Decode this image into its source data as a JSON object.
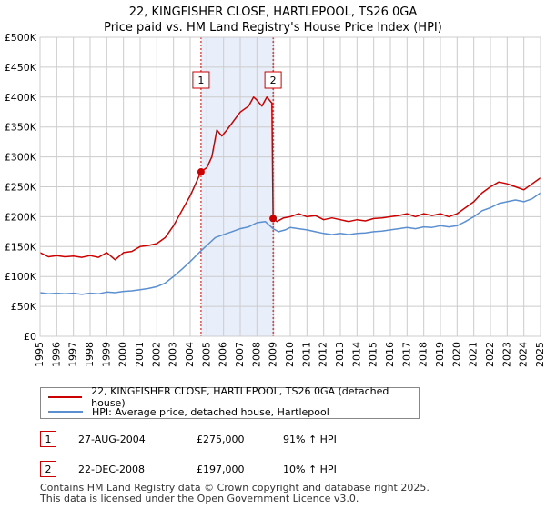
{
  "title": "22, KINGFISHER CLOSE, HARTLEPOOL, TS26 0GA",
  "subtitle": "Price paid vs. HM Land Registry's House Price Index (HPI)",
  "colors": {
    "property": "#cc0000",
    "hpi": "#5b8fd0",
    "shade": "#e8eefa",
    "grid": "#cccccc",
    "marker_line": "#cc0000"
  },
  "legend": {
    "property_label": "22, KINGFISHER CLOSE, HARTLEPOOL, TS26 0GA (detached house)",
    "hpi_label": "HPI: Average price, detached house, Hartlepool"
  },
  "sales": [
    {
      "num": "1",
      "date": "27-AUG-2004",
      "price": "£275,000",
      "hpi_change": "91% ↑ HPI"
    },
    {
      "num": "2",
      "date": "22-DEC-2008",
      "price": "£197,000",
      "hpi_change": "10% ↑ HPI"
    }
  ],
  "footer": {
    "line1": "Contains HM Land Registry data © Crown copyright and database right 2025.",
    "line2": "This data is licensed under the Open Government Licence v3.0."
  },
  "chart_data": {
    "type": "line",
    "title": "22, KINGFISHER CLOSE, HARTLEPOOL, TS26 0GA",
    "subtitle": "Price paid vs. HM Land Registry's House Price Index (HPI)",
    "xlim": [
      1995,
      2025
    ],
    "ylim": [
      0,
      500000
    ],
    "y_ticks": [
      0,
      50000,
      100000,
      150000,
      200000,
      250000,
      300000,
      350000,
      400000,
      450000,
      500000
    ],
    "y_tick_labels": [
      "£0",
      "£50K",
      "£100K",
      "£150K",
      "£200K",
      "£250K",
      "£300K",
      "£350K",
      "£400K",
      "£450K",
      "£500K"
    ],
    "x_ticks": [
      1995,
      1996,
      1997,
      1998,
      1999,
      2000,
      2001,
      2002,
      2003,
      2004,
      2005,
      2006,
      2007,
      2008,
      2009,
      2010,
      2011,
      2012,
      2013,
      2014,
      2015,
      2016,
      2017,
      2018,
      2019,
      2020,
      2021,
      2022,
      2023,
      2024,
      2025
    ],
    "x_tick_labels": [
      "1995",
      "1996",
      "1997",
      "1998",
      "1999",
      "2000",
      "2001",
      "2002",
      "2003",
      "2004",
      "2005",
      "2006",
      "2007",
      "2008",
      "2009",
      "2010",
      "2011",
      "2012",
      "2013",
      "2014",
      "2015",
      "2016",
      "2017",
      "2018",
      "2019",
      "2020",
      "2021",
      "2022",
      "2023",
      "2024",
      "2025"
    ],
    "shaded_region": [
      2004.65,
      2008.97
    ],
    "sale_markers": [
      {
        "label": "1",
        "x": 2004.65,
        "y": 275000
      },
      {
        "label": "2",
        "x": 2008.97,
        "y": 197000
      }
    ],
    "series": [
      {
        "name": "22, KINGFISHER CLOSE, HARTLEPOOL, TS26 0GA (detached house)",
        "color": "#cc0000",
        "points": [
          [
            1995,
            140000
          ],
          [
            1995.5,
            133000
          ],
          [
            1996,
            135000
          ],
          [
            1996.5,
            133000
          ],
          [
            1997,
            134000
          ],
          [
            1997.5,
            132000
          ],
          [
            1998,
            135000
          ],
          [
            1998.5,
            132000
          ],
          [
            1999,
            140000
          ],
          [
            1999.5,
            128000
          ],
          [
            2000,
            140000
          ],
          [
            2000.5,
            142000
          ],
          [
            2001,
            150000
          ],
          [
            2001.5,
            152000
          ],
          [
            2002,
            155000
          ],
          [
            2002.5,
            165000
          ],
          [
            2003,
            185000
          ],
          [
            2003.5,
            210000
          ],
          [
            2004,
            235000
          ],
          [
            2004.65,
            275000
          ],
          [
            2005,
            282000
          ],
          [
            2005.3,
            300000
          ],
          [
            2005.6,
            345000
          ],
          [
            2005.9,
            335000
          ],
          [
            2006.2,
            345000
          ],
          [
            2006.6,
            360000
          ],
          [
            2007,
            375000
          ],
          [
            2007.5,
            385000
          ],
          [
            2007.8,
            400000
          ],
          [
            2008,
            395000
          ],
          [
            2008.3,
            385000
          ],
          [
            2008.6,
            400000
          ],
          [
            2008.9,
            390000
          ],
          [
            2008.97,
            197000
          ],
          [
            2009.2,
            192000
          ],
          [
            2009.6,
            198000
          ],
          [
            2010,
            200000
          ],
          [
            2010.5,
            205000
          ],
          [
            2011,
            200000
          ],
          [
            2011.5,
            202000
          ],
          [
            2012,
            195000
          ],
          [
            2012.5,
            198000
          ],
          [
            2013,
            195000
          ],
          [
            2013.5,
            192000
          ],
          [
            2014,
            195000
          ],
          [
            2014.5,
            193000
          ],
          [
            2015,
            197000
          ],
          [
            2015.5,
            198000
          ],
          [
            2016,
            200000
          ],
          [
            2016.5,
            202000
          ],
          [
            2017,
            205000
          ],
          [
            2017.5,
            200000
          ],
          [
            2018,
            205000
          ],
          [
            2018.5,
            202000
          ],
          [
            2019,
            205000
          ],
          [
            2019.5,
            200000
          ],
          [
            2020,
            205000
          ],
          [
            2020.5,
            215000
          ],
          [
            2021,
            225000
          ],
          [
            2021.5,
            240000
          ],
          [
            2022,
            250000
          ],
          [
            2022.5,
            258000
          ],
          [
            2023,
            255000
          ],
          [
            2023.5,
            250000
          ],
          [
            2024,
            245000
          ],
          [
            2024.5,
            255000
          ],
          [
            2025,
            265000
          ]
        ]
      },
      {
        "name": "HPI: Average price, detached house, Hartlepool",
        "color": "#5b8fd0",
        "points": [
          [
            1995,
            73000
          ],
          [
            1995.5,
            71000
          ],
          [
            1996,
            72000
          ],
          [
            1996.5,
            71000
          ],
          [
            1997,
            72000
          ],
          [
            1997.5,
            70000
          ],
          [
            1998,
            72000
          ],
          [
            1998.5,
            71000
          ],
          [
            1999,
            74000
          ],
          [
            1999.5,
            73000
          ],
          [
            2000,
            75000
          ],
          [
            2000.5,
            76000
          ],
          [
            2001,
            78000
          ],
          [
            2001.5,
            80000
          ],
          [
            2002,
            83000
          ],
          [
            2002.5,
            89000
          ],
          [
            2003,
            100000
          ],
          [
            2003.5,
            112000
          ],
          [
            2004,
            125000
          ],
          [
            2004.65,
            143000
          ],
          [
            2005,
            152000
          ],
          [
            2005.5,
            165000
          ],
          [
            2006,
            170000
          ],
          [
            2006.5,
            175000
          ],
          [
            2007,
            180000
          ],
          [
            2007.5,
            183000
          ],
          [
            2008,
            190000
          ],
          [
            2008.5,
            192000
          ],
          [
            2008.97,
            180000
          ],
          [
            2009.3,
            175000
          ],
          [
            2009.7,
            178000
          ],
          [
            2010,
            182000
          ],
          [
            2010.5,
            180000
          ],
          [
            2011,
            178000
          ],
          [
            2011.5,
            175000
          ],
          [
            2012,
            172000
          ],
          [
            2012.5,
            170000
          ],
          [
            2013,
            172000
          ],
          [
            2013.5,
            170000
          ],
          [
            2014,
            172000
          ],
          [
            2014.5,
            173000
          ],
          [
            2015,
            175000
          ],
          [
            2015.5,
            176000
          ],
          [
            2016,
            178000
          ],
          [
            2016.5,
            180000
          ],
          [
            2017,
            182000
          ],
          [
            2017.5,
            180000
          ],
          [
            2018,
            183000
          ],
          [
            2018.5,
            182000
          ],
          [
            2019,
            185000
          ],
          [
            2019.5,
            183000
          ],
          [
            2020,
            185000
          ],
          [
            2020.5,
            192000
          ],
          [
            2021,
            200000
          ],
          [
            2021.5,
            210000
          ],
          [
            2022,
            215000
          ],
          [
            2022.5,
            222000
          ],
          [
            2023,
            225000
          ],
          [
            2023.5,
            228000
          ],
          [
            2024,
            225000
          ],
          [
            2024.5,
            230000
          ],
          [
            2025,
            240000
          ]
        ]
      }
    ]
  }
}
